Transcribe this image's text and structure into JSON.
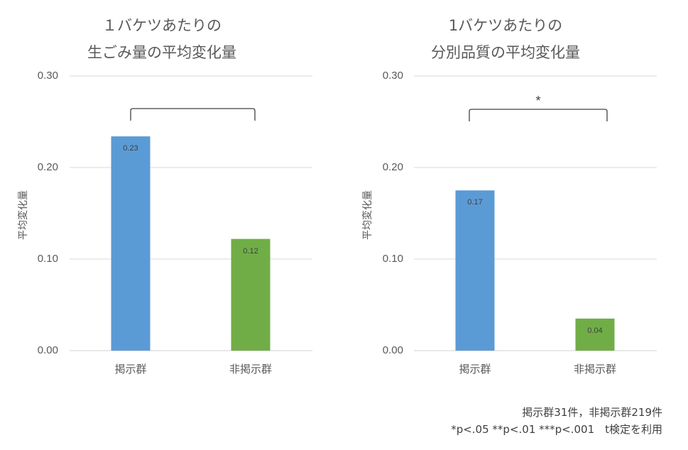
{
  "chart_data": [
    {
      "type": "bar",
      "title_lines": [
        "１バケツあたりの",
        "生ごみ量の平均変化量"
      ],
      "ylabel": "平均変化量",
      "categories": [
        "掲示群",
        "非掲示群"
      ],
      "values": [
        0.234,
        0.122
      ],
      "value_labels": [
        "0.23",
        "0.12"
      ],
      "colors": [
        "#5b9bd5",
        "#70ad47"
      ],
      "ylim": [
        0,
        0.3
      ],
      "yticks": [
        "0.00",
        "0.10",
        "0.20",
        "0.30"
      ],
      "grid": true,
      "legend": "none",
      "significance": {
        "show_bracket": true,
        "marker": ""
      }
    },
    {
      "type": "bar",
      "title_lines": [
        "1バケツあたりの",
        "分別品質の平均変化量"
      ],
      "ylabel": "平均変化量",
      "categories": [
        "掲示群",
        "非掲示群"
      ],
      "values": [
        0.175,
        0.035
      ],
      "value_labels": [
        "0.17",
        "0.04"
      ],
      "colors": [
        "#5b9bd5",
        "#70ad47"
      ],
      "ylim": [
        0,
        0.3
      ],
      "yticks": [
        "0.00",
        "0.10",
        "0.20",
        "0.30"
      ],
      "grid": true,
      "legend": "none",
      "significance": {
        "show_bracket": true,
        "marker": "*"
      }
    }
  ],
  "footnote": {
    "line1": "掲示群31件，非掲示群219件",
    "line2": "*p<.05 **p<.01 ***p<.001　t検定を利用"
  }
}
